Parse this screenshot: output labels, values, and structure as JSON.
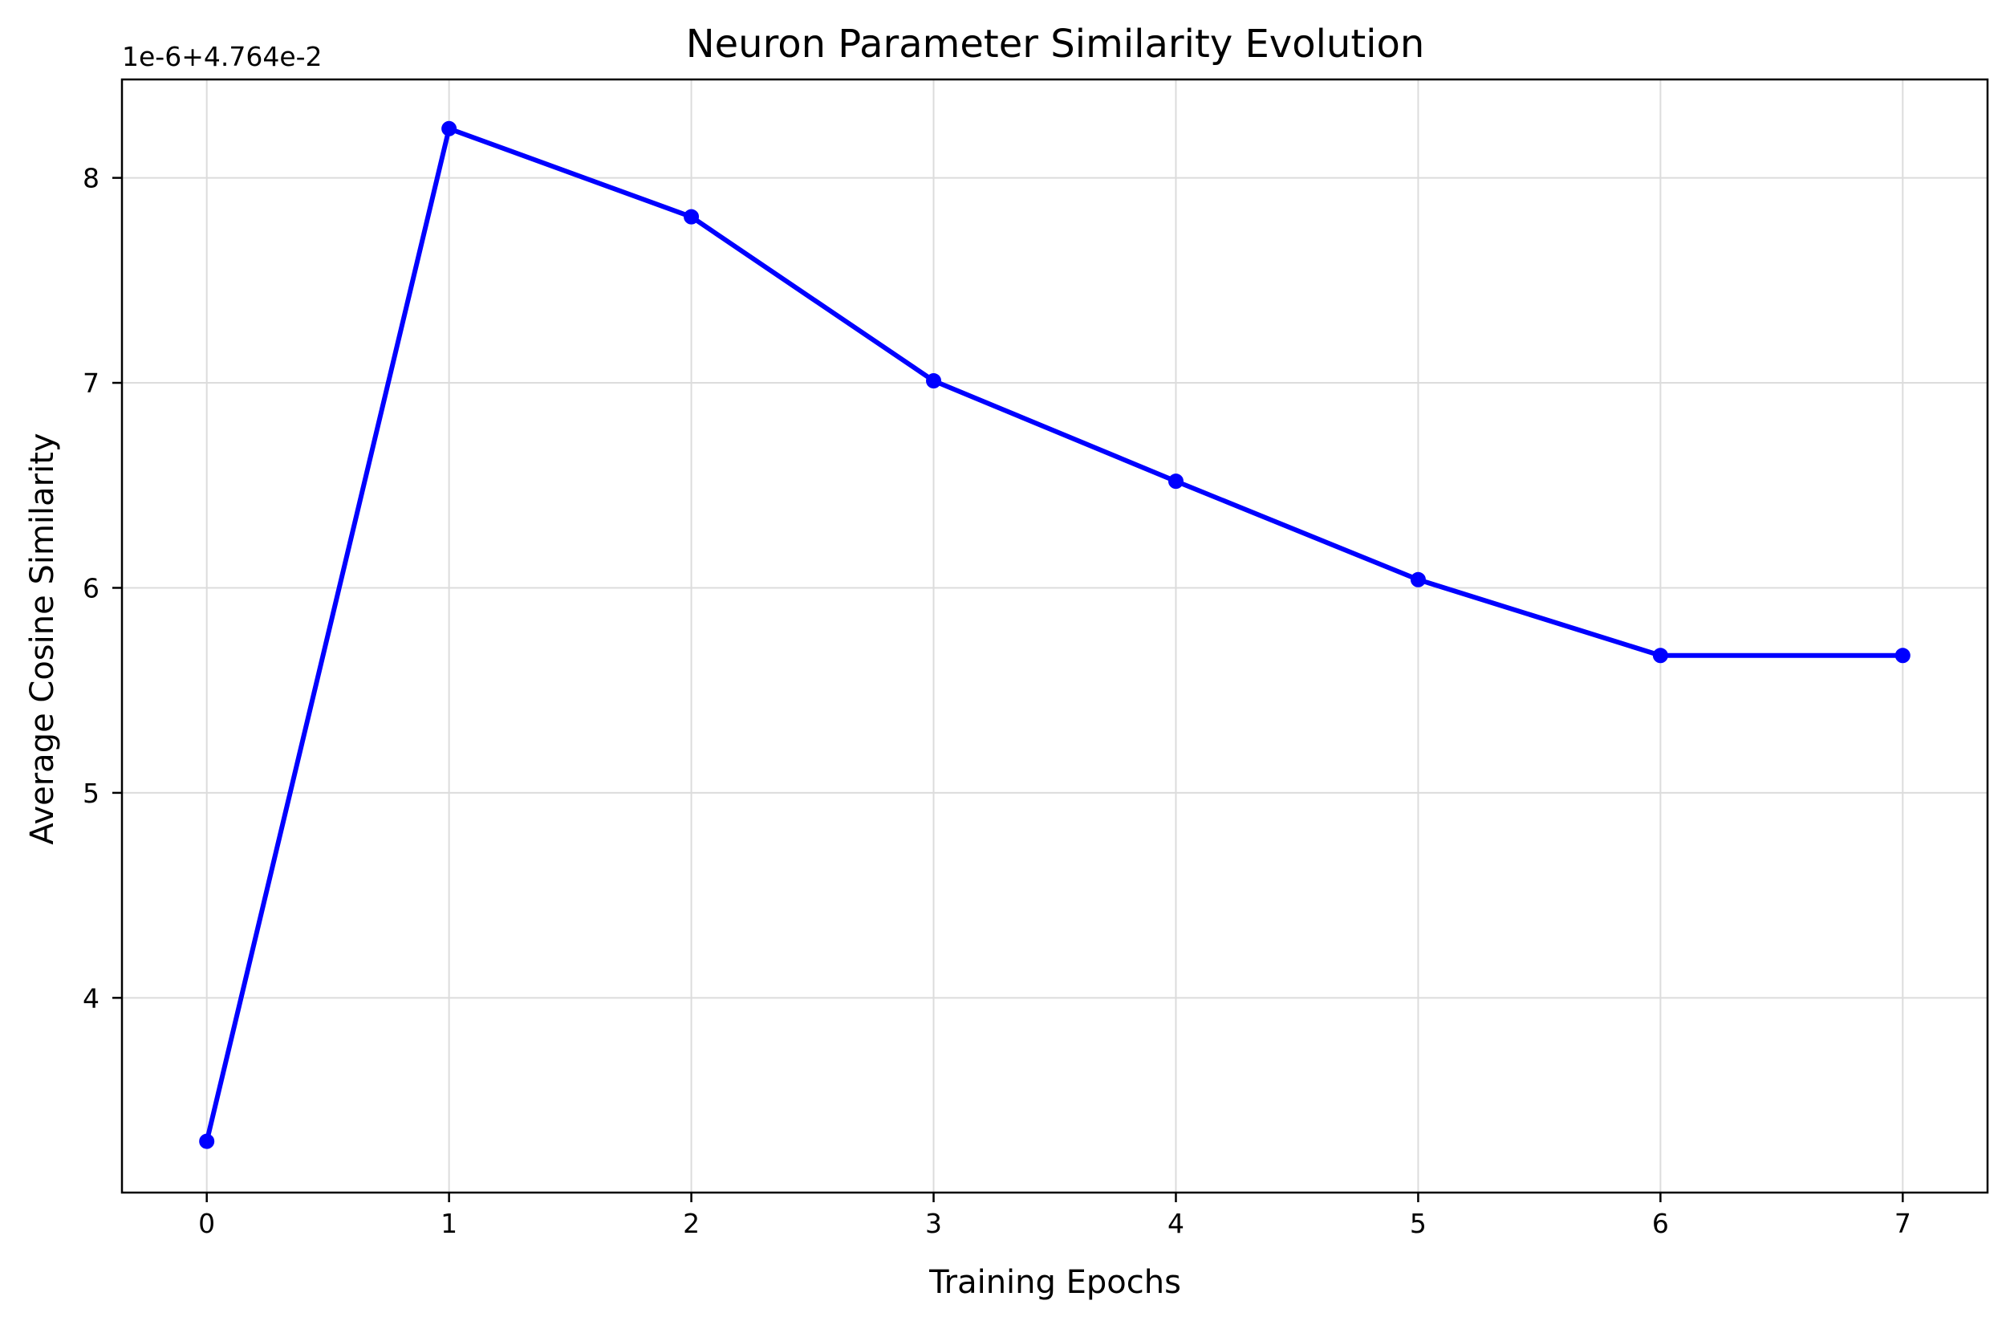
{
  "chart_data": {
    "type": "line",
    "title": "Neuron Parameter Similarity Evolution",
    "xlabel": "Training Epochs",
    "ylabel": "Average Cosine Similarity",
    "y_offset_text": "1e-6+4.764e-2",
    "x": [
      0,
      1,
      2,
      3,
      4,
      5,
      6,
      7
    ],
    "x_ticks": [
      "0",
      "1",
      "2",
      "3",
      "4",
      "5",
      "6",
      "7"
    ],
    "y_ticks": [
      "4",
      "5",
      "6",
      "7",
      "8"
    ],
    "y_tick_values": [
      4,
      5,
      6,
      7,
      8
    ],
    "xlim": [
      -0.35,
      7.35
    ],
    "ylim": [
      3.05,
      8.48
    ],
    "grid": true,
    "series": [
      {
        "values": [
          3.3,
          8.24,
          7.81,
          7.01,
          6.52,
          6.04,
          5.67,
          5.67
        ],
        "color": "#0000ff",
        "marker": "circle"
      }
    ]
  }
}
